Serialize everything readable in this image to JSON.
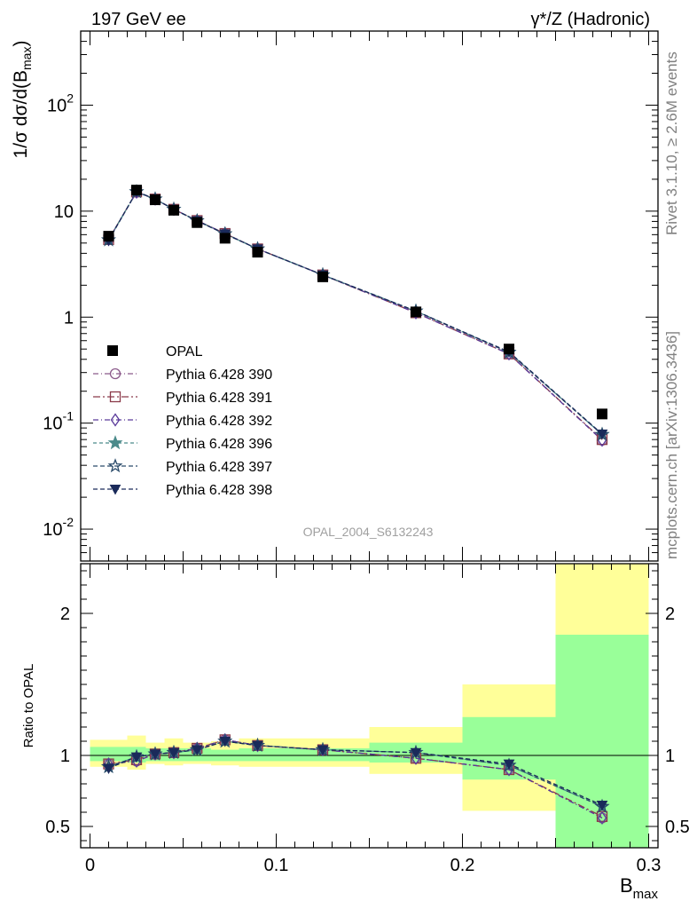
{
  "header": {
    "left_title": "197 GeV ee",
    "right_title": "γ*/Z (Hadronic)"
  },
  "side_labels": {
    "rivet": "Rivet 3.1.10, ≥ 2.6M events",
    "mcplots": "mcplots.cern.ch [arXiv:1306.3436]"
  },
  "analysis_id": "OPAL_2004_S6132243",
  "colors": {
    "band_inner": "#99ff99",
    "band_outer": "#ffff99",
    "data": "#000000"
  },
  "chart_data": [
    {
      "type": "line",
      "title": "",
      "xlabel": "B_max",
      "ylabel": "1/σ dσ/d(B_max)",
      "yscale": "log",
      "ylim": [
        0.005,
        500
      ],
      "xlim": [
        -0.005,
        0.305
      ],
      "ytick_labels": [
        "10^-2",
        "10^-1",
        "1",
        "10",
        "10^2"
      ],
      "legend_placement": "left-center",
      "data": {
        "name": "OPAL",
        "x": [
          0.01,
          0.025,
          0.035,
          0.045,
          0.0575,
          0.0725,
          0.09,
          0.125,
          0.175,
          0.225,
          0.275
        ],
        "y": [
          5.8,
          15.8,
          12.8,
          10.2,
          7.8,
          5.55,
          4.1,
          2.4,
          1.12,
          0.5,
          0.122
        ]
      },
      "series": [
        {
          "name": "Pythia 6.428 390",
          "color": "#8b5a8b",
          "marker": "circle-open",
          "y": [
            5.4,
            15.1,
            13.0,
            10.4,
            8.15,
            6.15,
            4.4,
            2.5,
            1.1,
            0.45,
            0.069
          ]
        },
        {
          "name": "Pythia 6.428 391",
          "color": "#8b3a4a",
          "marker": "square-open",
          "y": [
            5.4,
            15.2,
            13.0,
            10.4,
            8.15,
            6.15,
            4.4,
            2.5,
            1.1,
            0.45,
            0.07
          ]
        },
        {
          "name": "Pythia 6.428 392",
          "color": "#5a3a9a",
          "marker": "diamond-open",
          "y": [
            5.4,
            15.1,
            13.0,
            10.4,
            8.15,
            6.15,
            4.4,
            2.5,
            1.1,
            0.45,
            0.069
          ]
        },
        {
          "name": "Pythia 6.428 396",
          "color": "#4a8a8a",
          "marker": "star",
          "y": [
            5.35,
            15.2,
            13.0,
            10.4,
            8.1,
            6.1,
            4.4,
            2.5,
            1.14,
            0.465,
            0.078
          ]
        },
        {
          "name": "Pythia 6.428 397",
          "color": "#2a4a6a",
          "marker": "star-open",
          "y": [
            5.35,
            15.2,
            13.0,
            10.4,
            8.1,
            6.1,
            4.4,
            2.5,
            1.14,
            0.465,
            0.078
          ]
        },
        {
          "name": "Pythia 6.428 398",
          "color": "#1a2a5a",
          "marker": "triangle-down",
          "y": [
            5.3,
            15.3,
            13.0,
            10.4,
            8.1,
            6.1,
            4.4,
            2.5,
            1.14,
            0.47,
            0.079
          ]
        }
      ]
    },
    {
      "type": "line",
      "title": "",
      "xlabel": "B_max",
      "ylabel": "Ratio to OPAL",
      "ylim": [
        0.35,
        2.35
      ],
      "xlim": [
        -0.005,
        0.305
      ],
      "yticks": [
        0.5,
        1,
        2
      ],
      "xticks": [
        0,
        0.1,
        0.2,
        0.3
      ],
      "xtick_labels": [
        "0",
        "0.1",
        "0.2",
        "0.3"
      ],
      "bins": [
        {
          "lo": 0.0,
          "hi": 0.02,
          "green": [
            0.96,
            1.06
          ],
          "yellow": [
            0.92,
            1.11
          ]
        },
        {
          "lo": 0.02,
          "hi": 0.03,
          "green": [
            0.95,
            1.06
          ],
          "yellow": [
            0.9,
            1.14
          ]
        },
        {
          "lo": 0.03,
          "hi": 0.04,
          "green": [
            0.96,
            1.05
          ],
          "yellow": [
            0.94,
            1.09
          ]
        },
        {
          "lo": 0.04,
          "hi": 0.05,
          "green": [
            0.96,
            1.05
          ],
          "yellow": [
            0.93,
            1.12
          ]
        },
        {
          "lo": 0.05,
          "hi": 0.065,
          "green": [
            0.96,
            1.05
          ],
          "yellow": [
            0.94,
            1.09
          ]
        },
        {
          "lo": 0.065,
          "hi": 0.08,
          "green": [
            0.96,
            1.04
          ],
          "yellow": [
            0.93,
            1.1
          ]
        },
        {
          "lo": 0.08,
          "hi": 0.1,
          "green": [
            0.96,
            1.05
          ],
          "yellow": [
            0.92,
            1.12
          ]
        },
        {
          "lo": 0.1,
          "hi": 0.15,
          "green": [
            0.96,
            1.05
          ],
          "yellow": [
            0.92,
            1.12
          ]
        },
        {
          "lo": 0.15,
          "hi": 0.2,
          "green": [
            0.95,
            1.09
          ],
          "yellow": [
            0.87,
            1.2
          ]
        },
        {
          "lo": 0.2,
          "hi": 0.25,
          "green": [
            0.83,
            1.27
          ],
          "yellow": [
            0.61,
            1.5
          ]
        },
        {
          "lo": 0.25,
          "hi": 0.3,
          "green": [
            0.35,
            1.85
          ],
          "yellow": [
            0.35,
            2.35
          ]
        }
      ],
      "series": [
        {
          "name": "Pythia 6.428 390",
          "y": [
            0.94,
            0.96,
            1.01,
            1.02,
            1.05,
            1.11,
            1.07,
            1.04,
            0.98,
            0.9,
            0.56
          ]
        },
        {
          "name": "Pythia 6.428 391",
          "y": [
            0.94,
            0.97,
            1.01,
            1.02,
            1.05,
            1.11,
            1.07,
            1.04,
            0.98,
            0.9,
            0.57
          ]
        },
        {
          "name": "Pythia 6.428 392",
          "y": [
            0.94,
            0.96,
            1.01,
            1.02,
            1.05,
            1.11,
            1.07,
            1.04,
            0.98,
            0.9,
            0.56
          ]
        },
        {
          "name": "Pythia 6.428 396",
          "y": [
            0.92,
            0.99,
            1.01,
            1.02,
            1.04,
            1.1,
            1.07,
            1.04,
            1.02,
            0.93,
            0.64
          ]
        },
        {
          "name": "Pythia 6.428 397",
          "y": [
            0.92,
            0.99,
            1.01,
            1.02,
            1.04,
            1.1,
            1.07,
            1.04,
            1.02,
            0.93,
            0.64
          ]
        },
        {
          "name": "Pythia 6.428 398",
          "y": [
            0.91,
            0.99,
            1.01,
            1.02,
            1.04,
            1.1,
            1.07,
            1.04,
            1.02,
            0.94,
            0.65
          ]
        }
      ]
    }
  ]
}
